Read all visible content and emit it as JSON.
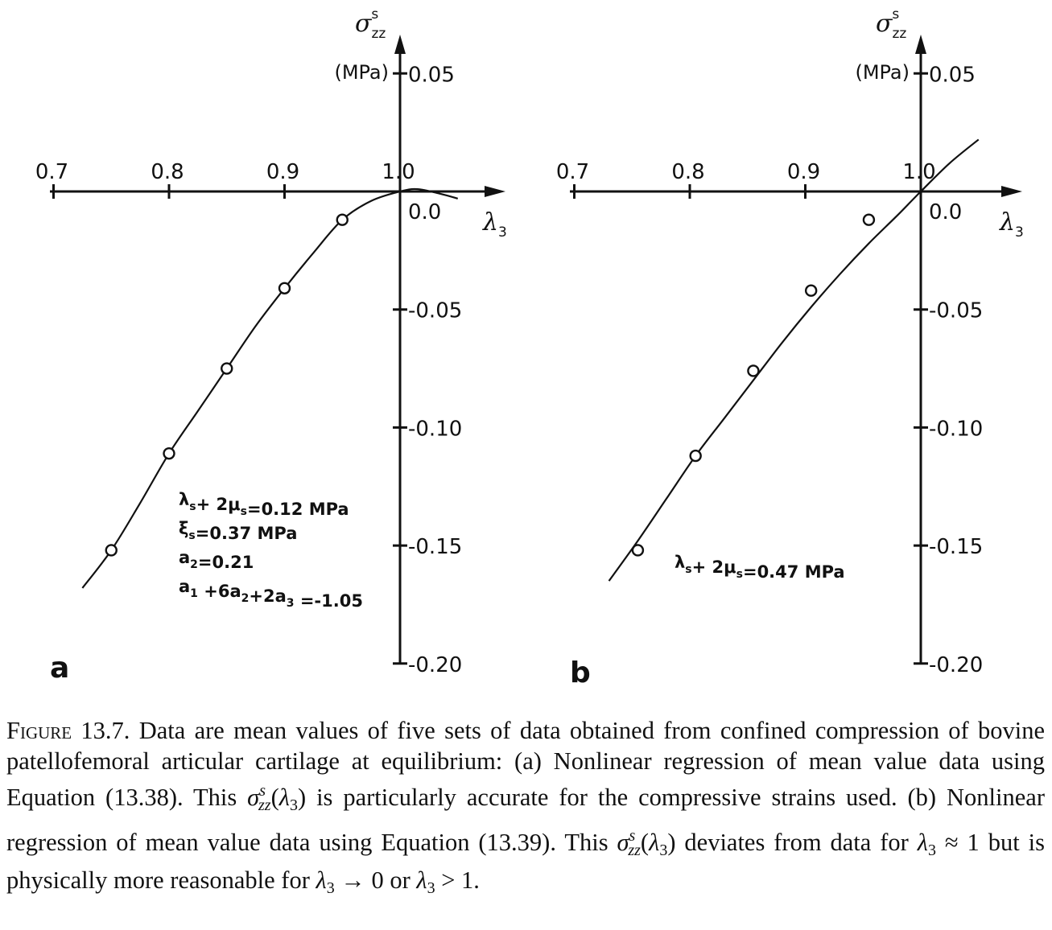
{
  "chart_data": [
    {
      "type": "scatter",
      "panel_label": "a",
      "x_label": "λ3",
      "y_label": "σzz s",
      "y_unit": "(MPa)",
      "x_range": [
        0.7,
        1.05
      ],
      "y_range": [
        -0.2,
        0.05
      ],
      "x_ticks": [
        {
          "value": 0.7,
          "label": "0.7"
        },
        {
          "value": 0.8,
          "label": "0.8"
        },
        {
          "value": 0.9,
          "label": "0.9"
        },
        {
          "value": 1.0,
          "label": "1.0"
        }
      ],
      "y_ticks": [
        {
          "value": 0.05,
          "label": "0.05"
        },
        {
          "value": -0.05,
          "label": "-0.05"
        },
        {
          "value": -0.1,
          "label": "-0.10"
        },
        {
          "value": -0.15,
          "label": "-0.15"
        },
        {
          "value": -0.2,
          "label": "-0.20"
        }
      ],
      "origin_label": "0.0",
      "points": [
        [
          0.75,
          -0.152
        ],
        [
          0.8,
          -0.111
        ],
        [
          0.85,
          -0.075
        ],
        [
          0.9,
          -0.041
        ],
        [
          0.95,
          -0.012
        ]
      ],
      "fit_curve": [
        [
          0.725,
          -0.168
        ],
        [
          0.75,
          -0.152
        ],
        [
          0.775,
          -0.132
        ],
        [
          0.8,
          -0.111
        ],
        [
          0.825,
          -0.093
        ],
        [
          0.85,
          -0.075
        ],
        [
          0.875,
          -0.057
        ],
        [
          0.9,
          -0.041
        ],
        [
          0.925,
          -0.026
        ],
        [
          0.95,
          -0.012
        ],
        [
          0.975,
          -0.004
        ],
        [
          1.0,
          0.0
        ],
        [
          1.015,
          0.001
        ],
        [
          1.035,
          -0.001
        ],
        [
          1.05,
          -0.003
        ]
      ],
      "annotations": [
        "λs+ 2μs=0.12 MPa",
        "ξs=0.37 MPa",
        "a2=0.21",
        "a1 +6a2+2a3 =-1.05"
      ]
    },
    {
      "type": "scatter",
      "panel_label": "b",
      "x_label": "λ3",
      "y_label": "σzz s",
      "y_unit": "(MPa)",
      "x_range": [
        0.7,
        1.05
      ],
      "y_range": [
        -0.2,
        0.05
      ],
      "x_ticks": [
        {
          "value": 0.7,
          "label": "0.7"
        },
        {
          "value": 0.8,
          "label": "0.8"
        },
        {
          "value": 0.9,
          "label": "0.9"
        },
        {
          "value": 1.0,
          "label": "1.0"
        }
      ],
      "y_ticks": [
        {
          "value": 0.05,
          "label": "0.05"
        },
        {
          "value": -0.05,
          "label": "-0.05"
        },
        {
          "value": -0.1,
          "label": "-0.10"
        },
        {
          "value": -0.15,
          "label": "-0.15"
        },
        {
          "value": -0.2,
          "label": "-0.20"
        }
      ],
      "origin_label": "0.0",
      "points": [
        [
          0.755,
          -0.152
        ],
        [
          0.805,
          -0.112
        ],
        [
          0.855,
          -0.076
        ],
        [
          0.905,
          -0.042
        ],
        [
          0.955,
          -0.012
        ]
      ],
      "fit_curve": [
        [
          0.73,
          -0.165
        ],
        [
          0.755,
          -0.148
        ],
        [
          0.78,
          -0.13
        ],
        [
          0.805,
          -0.112
        ],
        [
          0.83,
          -0.096
        ],
        [
          0.855,
          -0.08
        ],
        [
          0.88,
          -0.064
        ],
        [
          0.905,
          -0.049
        ],
        [
          0.93,
          -0.035
        ],
        [
          0.955,
          -0.022
        ],
        [
          0.98,
          -0.01
        ],
        [
          1.0,
          0.0
        ],
        [
          1.025,
          0.012
        ],
        [
          1.05,
          0.022
        ]
      ],
      "annotations": [
        "λs+ 2μs=0.47 MPa"
      ]
    }
  ],
  "caption": {
    "label": "Figure 13.7.",
    "segments": [
      {
        "t": " Data are mean values of five sets of data obtained from confined compression of bovine patellofemoral articular cartilage at equilibrium: (a) Nonlinear regression of mean value data using Equation (13.38). This "
      },
      {
        "t": "σ",
        "i": true
      },
      {
        "t": "s",
        "i": true,
        "sup": true
      },
      {
        "t": "zz",
        "i": true,
        "sub": true
      },
      {
        "t": "("
      },
      {
        "t": "λ",
        "i": true
      },
      {
        "t": "3",
        "sub": true
      },
      {
        "t": ") is particularly accurate for the compressive strains used. (b) Nonlinear regression of mean value data using Equation (13.39). This "
      },
      {
        "t": "σ",
        "i": true
      },
      {
        "t": "s",
        "i": true,
        "sup": true
      },
      {
        "t": "zz",
        "i": true,
        "sub": true
      },
      {
        "t": "("
      },
      {
        "t": "λ",
        "i": true
      },
      {
        "t": "3",
        "sub": true
      },
      {
        "t": ") deviates from data for "
      },
      {
        "t": "λ",
        "i": true
      },
      {
        "t": "3",
        "sub": true
      },
      {
        "t": " ≈ 1 but is physically more reasonable for "
      },
      {
        "t": "λ",
        "i": true
      },
      {
        "t": "3",
        "sub": true
      },
      {
        "t": " → 0 or "
      },
      {
        "t": "λ",
        "i": true
      },
      {
        "t": "3",
        "sub": true
      },
      {
        "t": " > 1."
      }
    ]
  }
}
